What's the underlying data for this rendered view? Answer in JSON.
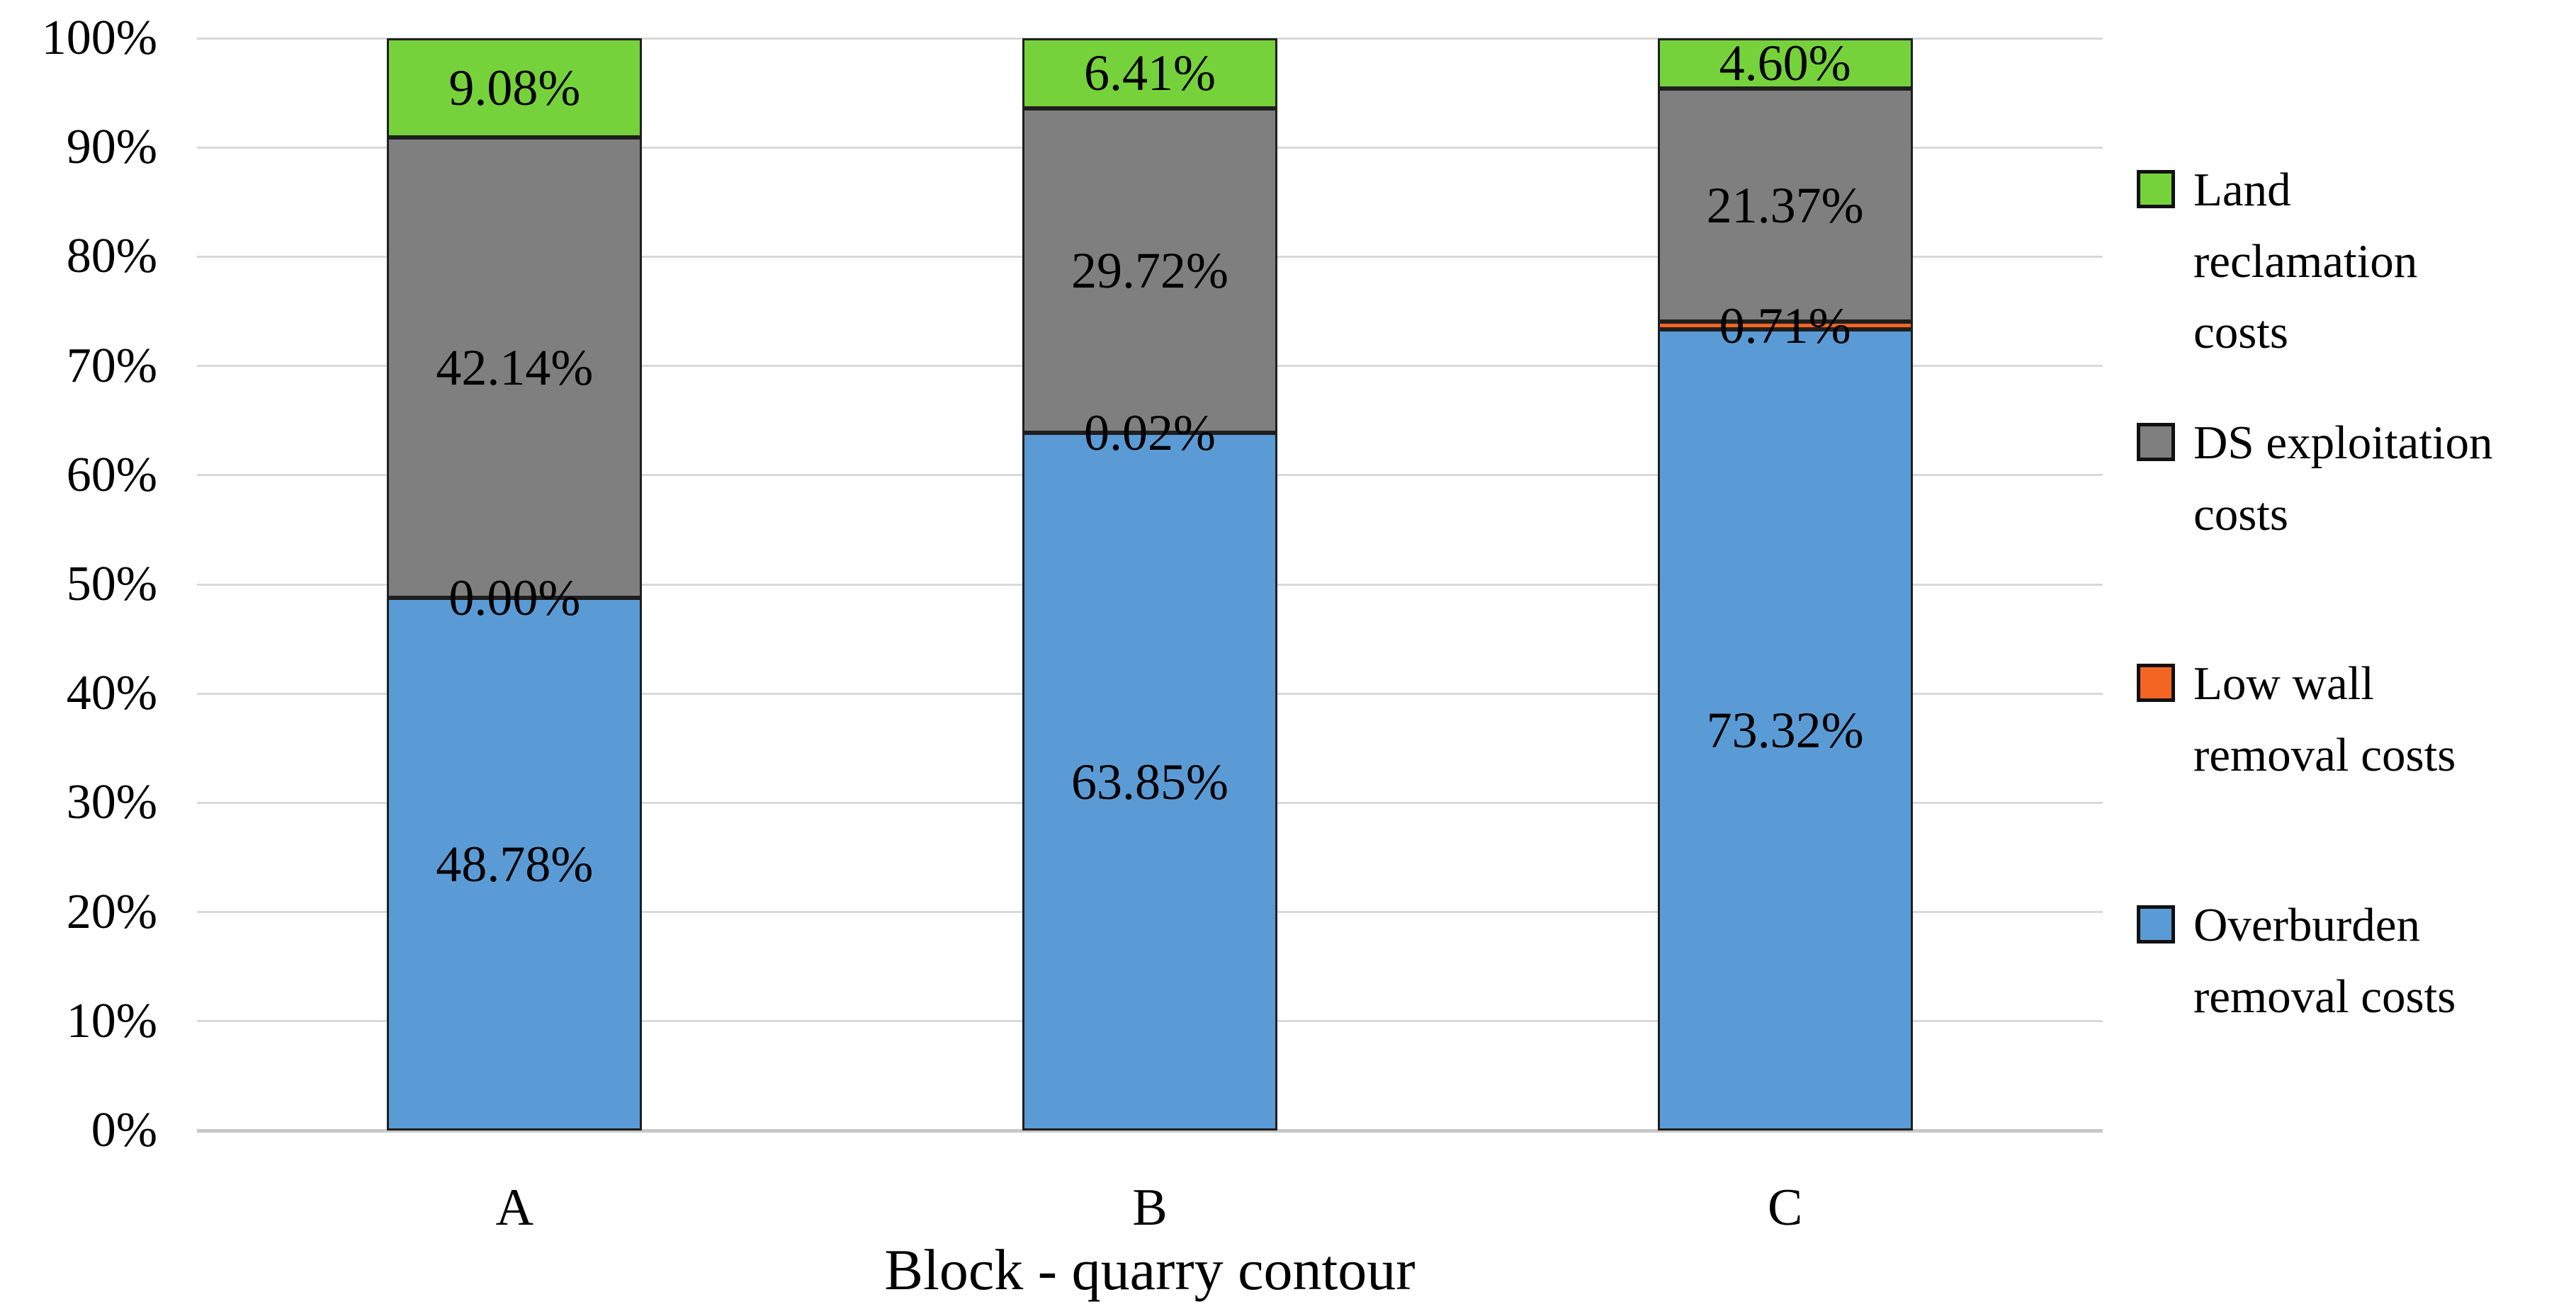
{
  "chart_data": {
    "type": "bar",
    "stacked": true,
    "title": "",
    "xlabel": "Block - quarry contour",
    "ylabel": "",
    "categories": [
      "A",
      "B",
      "C"
    ],
    "series": [
      {
        "name": "Overburden removal costs",
        "color": "#5B9BD5",
        "values": [
          48.78,
          63.85,
          73.32
        ]
      },
      {
        "name": "Low wall removal costs",
        "color": "#F26522",
        "values": [
          0.0,
          0.02,
          0.71
        ]
      },
      {
        "name": "DS exploitation costs",
        "color": "#7F7F7F",
        "values": [
          42.14,
          29.72,
          21.37
        ]
      },
      {
        "name": "Land reclamation costs",
        "color": "#76D23B",
        "values": [
          9.08,
          6.41,
          4.6
        ]
      }
    ],
    "segment_labels": {
      "A": [
        "48.78%",
        "0.00%",
        "42.14%",
        "9.08%"
      ],
      "B": [
        "63.85%",
        "0.02%",
        "29.72%",
        "6.41%"
      ],
      "C": [
        "73.32%",
        "0.71%",
        "21.37%",
        "4.60%"
      ]
    },
    "ylim": [
      0,
      100
    ],
    "yticks": [
      "0%",
      "10%",
      "20%",
      "30%",
      "40%",
      "50%",
      "60%",
      "70%",
      "80%",
      "90%",
      "100%"
    ],
    "grid": true,
    "grid_color": "#D9D9D9",
    "axis_line_color": "#C8C8C8",
    "legend_position": "right",
    "legend": [
      {
        "label": "Land reclamation costs",
        "color": "#76D23B"
      },
      {
        "label": "DS exploitation costs",
        "color": "#7F7F7F"
      },
      {
        "label": "Low wall removal costs",
        "color": "#F26522"
      },
      {
        "label": "Overburden removal costs",
        "color": "#5B9BD5"
      }
    ]
  }
}
